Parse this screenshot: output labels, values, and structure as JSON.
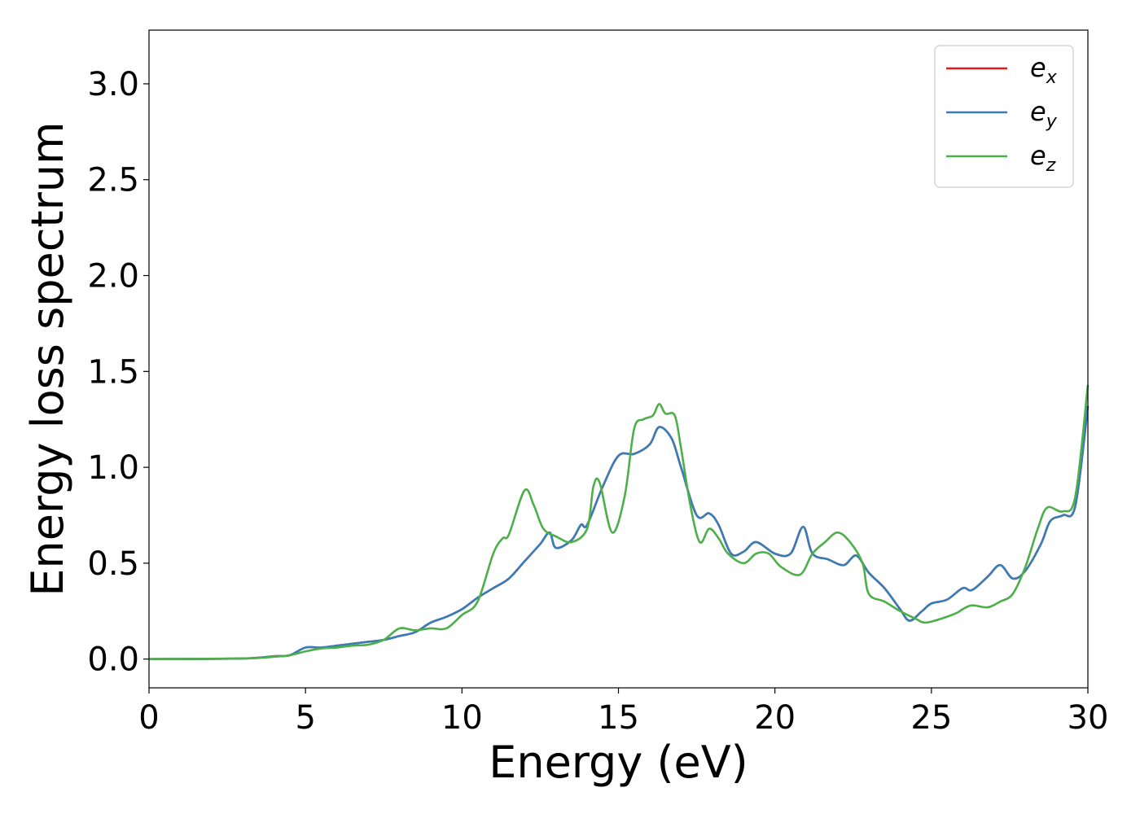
{
  "chart_data": {
    "type": "line",
    "xlabel": "Energy (eV)",
    "ylabel": "Energy loss spectrum",
    "xlim": [
      0,
      30
    ],
    "ylim": [
      -0.15,
      3.28
    ],
    "xticks": [
      0,
      5,
      10,
      15,
      20,
      25,
      30
    ],
    "xtick_labels": [
      "0",
      "5",
      "10",
      "15",
      "20",
      "25",
      "30"
    ],
    "yticks": [
      0.0,
      0.5,
      1.0,
      1.5,
      2.0,
      2.5,
      3.0
    ],
    "ytick_labels": [
      "0.0",
      "0.5",
      "1.0",
      "1.5",
      "2.0",
      "2.5",
      "3.0"
    ],
    "grid": false,
    "legend_position": "top-right",
    "series": [
      {
        "name": "e_x",
        "legend_base": "e",
        "legend_sub": "x",
        "color": "#e41a1c",
        "x": [
          0,
          3,
          4,
          4.5,
          5,
          5.5,
          6,
          6.5,
          7,
          7.5,
          8,
          8.5,
          9,
          9.5,
          10,
          10.5,
          11,
          11.5,
          12,
          12.5,
          12.8,
          13,
          13.5,
          13.8,
          14,
          14.5,
          15,
          15.5,
          16,
          16.3,
          16.7,
          17,
          17.5,
          17.9,
          18.2,
          18.6,
          19,
          19.4,
          20,
          20.5,
          20.9,
          21.2,
          21.7,
          22.2,
          22.6,
          23,
          23.5,
          24,
          24.3,
          24.7,
          25,
          25.5,
          26,
          26.3,
          26.8,
          27.2,
          27.6,
          28,
          28.5,
          28.8,
          29.2,
          29.6,
          30
        ],
        "y": [
          0,
          0.003,
          0.015,
          0.02,
          0.06,
          0.06,
          0.07,
          0.08,
          0.09,
          0.1,
          0.12,
          0.14,
          0.19,
          0.22,
          0.26,
          0.32,
          0.37,
          0.42,
          0.51,
          0.6,
          0.66,
          0.58,
          0.62,
          0.7,
          0.7,
          0.9,
          1.06,
          1.07,
          1.12,
          1.21,
          1.15,
          1.0,
          0.75,
          0.76,
          0.7,
          0.55,
          0.56,
          0.61,
          0.55,
          0.55,
          0.69,
          0.55,
          0.52,
          0.49,
          0.54,
          0.45,
          0.37,
          0.26,
          0.2,
          0.25,
          0.29,
          0.31,
          0.37,
          0.36,
          0.43,
          0.49,
          0.42,
          0.46,
          0.6,
          0.72,
          0.75,
          0.8,
          1.32
        ]
      },
      {
        "name": "e_y",
        "legend_base": "e",
        "legend_sub": "y",
        "color": "#377eb8",
        "x": [
          0,
          3,
          4,
          4.5,
          5,
          5.5,
          6,
          6.5,
          7,
          7.5,
          8,
          8.5,
          9,
          9.5,
          10,
          10.5,
          11,
          11.5,
          12,
          12.5,
          12.8,
          13,
          13.5,
          13.8,
          14,
          14.5,
          15,
          15.5,
          16,
          16.3,
          16.7,
          17,
          17.5,
          17.9,
          18.2,
          18.6,
          19,
          19.4,
          20,
          20.5,
          20.9,
          21.2,
          21.7,
          22.2,
          22.6,
          23,
          23.5,
          24,
          24.3,
          24.7,
          25,
          25.5,
          26,
          26.3,
          26.8,
          27.2,
          27.6,
          28,
          28.5,
          28.8,
          29.2,
          29.6,
          30
        ],
        "y": [
          0,
          0.003,
          0.015,
          0.02,
          0.06,
          0.06,
          0.07,
          0.08,
          0.09,
          0.1,
          0.12,
          0.14,
          0.19,
          0.22,
          0.26,
          0.32,
          0.37,
          0.42,
          0.51,
          0.6,
          0.66,
          0.58,
          0.62,
          0.7,
          0.7,
          0.9,
          1.06,
          1.07,
          1.12,
          1.21,
          1.15,
          1.0,
          0.75,
          0.76,
          0.7,
          0.55,
          0.56,
          0.61,
          0.55,
          0.55,
          0.69,
          0.55,
          0.52,
          0.49,
          0.54,
          0.45,
          0.37,
          0.26,
          0.2,
          0.25,
          0.29,
          0.31,
          0.37,
          0.36,
          0.43,
          0.49,
          0.42,
          0.46,
          0.6,
          0.72,
          0.75,
          0.8,
          1.32
        ]
      },
      {
        "name": "e_z",
        "legend_base": "e",
        "legend_sub": "z",
        "color": "#4daf4a",
        "x": [
          0,
          3,
          4,
          4.5,
          5,
          5.5,
          6,
          6.5,
          7,
          7.5,
          8,
          8.5,
          9,
          9.5,
          10,
          10.5,
          11,
          11.3,
          11.5,
          12,
          12.3,
          12.6,
          13,
          13.5,
          14,
          14.2,
          14.4,
          14.8,
          15.2,
          15.5,
          15.8,
          16.1,
          16.3,
          16.5,
          16.8,
          17,
          17.3,
          17.6,
          17.9,
          18.2,
          18.5,
          19,
          19.4,
          19.8,
          20.2,
          20.8,
          21.2,
          21.6,
          22,
          22.4,
          22.8,
          23,
          23.5,
          24,
          24.5,
          24.8,
          25.3,
          25.8,
          26,
          26.3,
          26.8,
          27.2,
          27.6,
          28,
          28.4,
          28.7,
          29.2,
          29.6,
          30
        ],
        "y": [
          0,
          0.003,
          0.012,
          0.02,
          0.04,
          0.055,
          0.06,
          0.07,
          0.075,
          0.1,
          0.16,
          0.15,
          0.16,
          0.16,
          0.23,
          0.3,
          0.55,
          0.63,
          0.65,
          0.88,
          0.8,
          0.68,
          0.64,
          0.61,
          0.68,
          0.9,
          0.92,
          0.66,
          0.85,
          1.2,
          1.25,
          1.27,
          1.33,
          1.28,
          1.27,
          1.1,
          0.8,
          0.61,
          0.68,
          0.63,
          0.55,
          0.5,
          0.55,
          0.55,
          0.48,
          0.44,
          0.55,
          0.61,
          0.66,
          0.61,
          0.5,
          0.34,
          0.3,
          0.25,
          0.21,
          0.19,
          0.21,
          0.24,
          0.26,
          0.28,
          0.27,
          0.3,
          0.34,
          0.48,
          0.68,
          0.79,
          0.77,
          0.85,
          1.43
        ]
      }
    ]
  }
}
